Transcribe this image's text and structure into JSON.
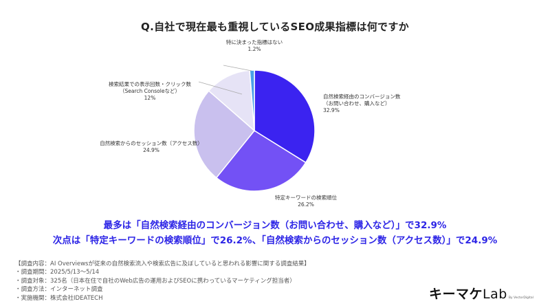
{
  "title": "Q.自社で現在最も重視しているSEO成果指標は何ですか",
  "chart_data": {
    "type": "pie",
    "title": "Q.自社で現在最も重視しているSEO成果指標は何ですか",
    "slices": [
      {
        "label_lines": [
          "自然検索経由のコンバージョン数",
          "（お問い合わせ、購入など）"
        ],
        "value": 32.9,
        "value_text": "32.9%",
        "color": "#3b23f0"
      },
      {
        "label_lines": [
          "特定キーワードの検索順位"
        ],
        "value": 26.2,
        "value_text": "26.2%",
        "color": "#7351f5"
      },
      {
        "label_lines": [
          "自然検索からのセッション数（アクセス数）"
        ],
        "value": 24.9,
        "value_text": "24.9%",
        "color": "#c9c0ee"
      },
      {
        "label_lines": [
          "検索結果での表示回数・クリック数",
          "（Search Consoleなど）"
        ],
        "value": 12.0,
        "value_text": "12%",
        "color": "#e6e3f6"
      },
      {
        "label_lines": [
          "特に決まった指標はない"
        ],
        "value": 1.2,
        "value_text": "1.2%",
        "color": "#4aa0e8"
      }
    ]
  },
  "headline": {
    "line1": "最多は「自然検索経由のコンバージョン数（お問い合わせ、購入など）」で32.9%",
    "line2": "次点は「特定キーワードの検索順位」で26.2%、「自然検索からのセッション数（アクセス数）」で24.9%"
  },
  "survey_notes": [
    "【調査内容：AI Overviewsが従来の自然検索流入や検索広告に及ぼしていると思われる影響に関する調査結果】",
    "・調査期間：2025/5/13〜5/14",
    "・調査対象：325名（日本在住で自社のWeb広告の運用およびSEOに携わっているマーケティング担当者）",
    "・調査方法：インターネット調査",
    "・実施機関：株式会社IDEATECH"
  ],
  "logo": {
    "main": "キーマケ",
    "lab": "Lab",
    "sub": "By VectorDigital"
  },
  "colors": {
    "accent": "#2d25e6"
  }
}
